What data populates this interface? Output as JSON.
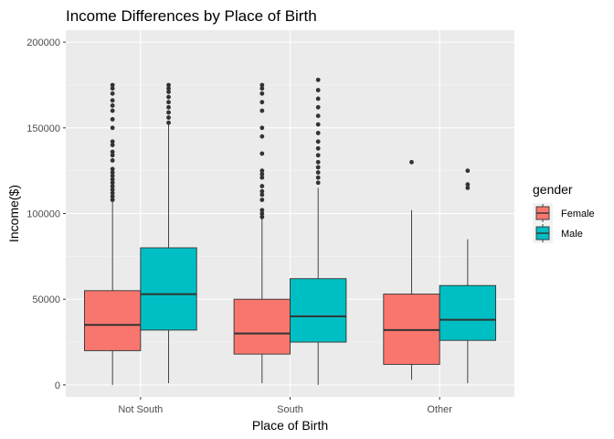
{
  "chart_data": {
    "type": "boxplot",
    "title": "Income Differences by Place of Birth",
    "xlabel": "Place of Birth",
    "ylabel": "Income($)",
    "categories": [
      "Not South",
      "South",
      "Other"
    ],
    "ylim": [
      -7000,
      207000
    ],
    "yticks": [
      0,
      50000,
      100000,
      150000,
      200000
    ],
    "ytick_labels": [
      "0",
      "50000",
      "100000",
      "150000",
      "200000"
    ],
    "grid": true,
    "legend": {
      "title": "gender",
      "position": "right"
    },
    "series": [
      {
        "name": "Female",
        "color": "#F8766D",
        "boxes": [
          {
            "category": "Not South",
            "lower_whisker": 0,
            "q1": 20000,
            "median": 35000,
            "q3": 55000,
            "upper_whisker": 107000,
            "outliers": [
              108000,
              110000,
              112000,
              114000,
              116000,
              118000,
              120000,
              122000,
              124000,
              126000,
              131000,
              134000,
              136000,
              140000,
              142000,
              150000,
              155000,
              160000,
              163000,
              166000,
              170000,
              173000,
              175000
            ]
          },
          {
            "category": "South",
            "lower_whisker": 1000,
            "q1": 18000,
            "median": 30000,
            "q3": 50000,
            "upper_whisker": 97000,
            "outliers": [
              98000,
              100000,
              102000,
              108000,
              111000,
              113000,
              116000,
              121000,
              123000,
              125000,
              135000,
              145000,
              150000,
              160000,
              165000,
              170000,
              173000,
              175000
            ]
          },
          {
            "category": "Other",
            "lower_whisker": 3000,
            "q1": 12000,
            "median": 32000,
            "q3": 53000,
            "upper_whisker": 102000,
            "outliers": [
              130000
            ]
          }
        ]
      },
      {
        "name": "Male",
        "color": "#00BFC4",
        "boxes": [
          {
            "category": "Not South",
            "lower_whisker": 1000,
            "q1": 32000,
            "median": 53000,
            "q3": 80000,
            "upper_whisker": 152000,
            "outliers": [
              153000,
              156000,
              159000,
              162000,
              165000,
              168000,
              171000,
              173000,
              175000
            ]
          },
          {
            "category": "South",
            "lower_whisker": 0,
            "q1": 25000,
            "median": 40000,
            "q3": 62000,
            "upper_whisker": 115000,
            "outliers": [
              118000,
              121000,
              124000,
              127000,
              130000,
              134000,
              138000,
              142000,
              147000,
              152000,
              157000,
              162000,
              167000,
              172000,
              178000
            ]
          },
          {
            "category": "Other",
            "lower_whisker": 1000,
            "q1": 26000,
            "median": 38000,
            "q3": 58000,
            "upper_whisker": 85000,
            "outliers": [
              115000,
              117000,
              125000
            ]
          }
        ]
      }
    ]
  }
}
